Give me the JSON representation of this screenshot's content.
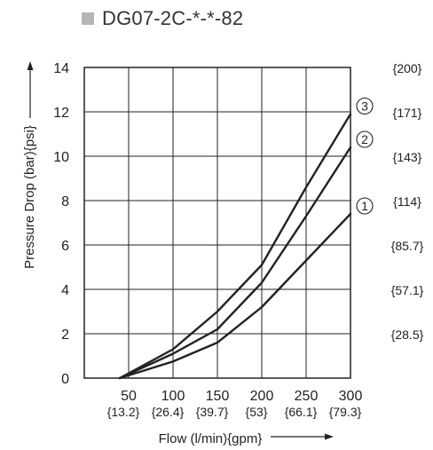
{
  "chart_data": {
    "type": "line",
    "title": "DG07-2C-*-*-82",
    "title_marker_color": "#b5b5b5",
    "xlabel": "Flow (l/min){gpm}",
    "ylabel": "Pressure Drop (bar){psi}",
    "xlim": [
      0,
      300
    ],
    "ylim": [
      0,
      14
    ],
    "grid": true,
    "x_ticks": [
      {
        "value": 50,
        "label": "50",
        "sub": "{13.2}"
      },
      {
        "value": 100,
        "label": "100",
        "sub": "{26.4}"
      },
      {
        "value": 150,
        "label": "150",
        "sub": "{39.7}"
      },
      {
        "value": 200,
        "label": "200",
        "sub": "{53}"
      },
      {
        "value": 250,
        "label": "250",
        "sub": "{66.1}"
      },
      {
        "value": 300,
        "label": "300",
        "sub": "{79.3}"
      }
    ],
    "y_ticks": [
      {
        "value": 0,
        "label": "0"
      },
      {
        "value": 2,
        "label": "2"
      },
      {
        "value": 4,
        "label": "4"
      },
      {
        "value": 6,
        "label": "6"
      },
      {
        "value": 8,
        "label": "8"
      },
      {
        "value": 10,
        "label": "10"
      },
      {
        "value": 12,
        "label": "12"
      },
      {
        "value": 14,
        "label": "14"
      }
    ],
    "psi_ticks": [
      {
        "value": 2,
        "label": "{28.5}"
      },
      {
        "value": 4,
        "label": "{57.1}"
      },
      {
        "value": 6,
        "label": "{85.7}"
      },
      {
        "value": 8,
        "label": "{114}"
      },
      {
        "value": 10,
        "label": "{143}"
      },
      {
        "value": 12,
        "label": "{171}"
      },
      {
        "value": 14,
        "label": "{200}"
      }
    ],
    "series": [
      {
        "marker": "1",
        "line_color": "#222222",
        "points": [
          [
            40,
            0
          ],
          [
            100,
            0.75
          ],
          [
            150,
            1.6
          ],
          [
            200,
            3.2
          ],
          [
            250,
            5.3
          ],
          [
            300,
            7.4
          ]
        ]
      },
      {
        "marker": "2",
        "line_color": "#222222",
        "points": [
          [
            40,
            0
          ],
          [
            100,
            1.1
          ],
          [
            150,
            2.2
          ],
          [
            200,
            4.3
          ],
          [
            250,
            7.3
          ],
          [
            300,
            10.4
          ]
        ]
      },
      {
        "marker": "3",
        "line_color": "#222222",
        "points": [
          [
            40,
            0
          ],
          [
            100,
            1.3
          ],
          [
            150,
            3.0
          ],
          [
            200,
            5.1
          ],
          [
            250,
            8.6
          ],
          [
            300,
            11.9
          ]
        ]
      }
    ]
  }
}
